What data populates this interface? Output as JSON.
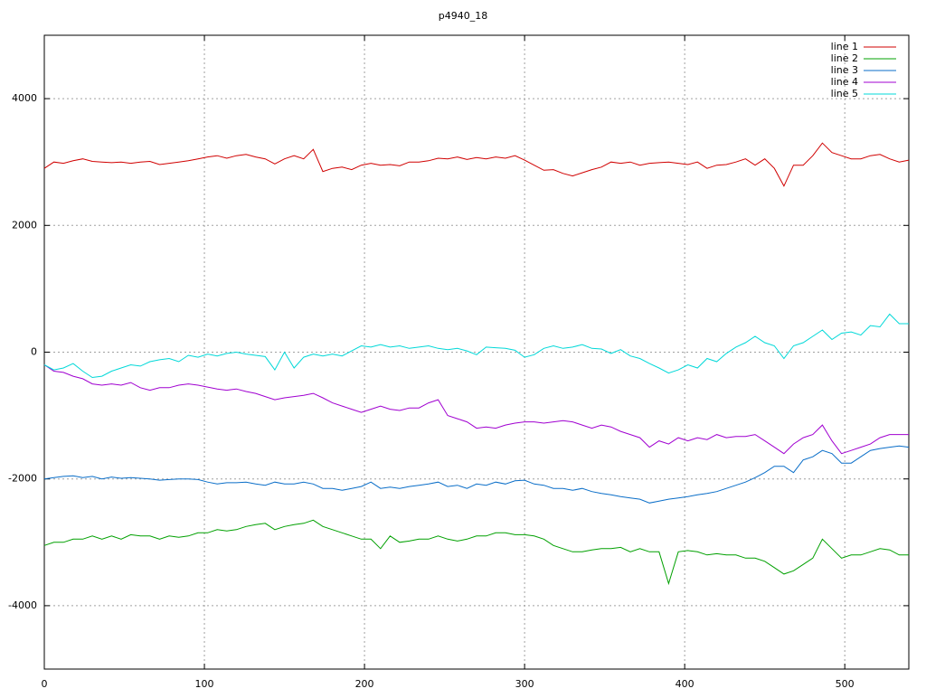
{
  "chart_data": {
    "type": "line",
    "title": "p4940_18",
    "x": [
      0,
      6,
      12,
      18,
      24,
      30,
      36,
      42,
      48,
      54,
      60,
      66,
      72,
      78,
      84,
      90,
      96,
      102,
      108,
      114,
      120,
      126,
      132,
      138,
      144,
      150,
      156,
      162,
      168,
      174,
      180,
      186,
      192,
      198,
      204,
      210,
      216,
      222,
      228,
      234,
      240,
      246,
      252,
      258,
      264,
      270,
      276,
      282,
      288,
      294,
      300,
      306,
      312,
      318,
      324,
      330,
      336,
      342,
      348,
      354,
      360,
      366,
      372,
      378,
      384,
      390,
      396,
      402,
      408,
      414,
      420,
      426,
      432,
      438,
      444,
      450,
      456,
      462,
      468,
      474,
      480,
      486,
      492,
      498,
      504,
      510,
      516,
      522,
      528,
      534,
      540
    ],
    "series": [
      {
        "name": "line 1",
        "color": "#d00000",
        "values": [
          2900,
          3000,
          2980,
          3020,
          3050,
          3010,
          3000,
          2990,
          3000,
          2980,
          3000,
          3010,
          2960,
          2980,
          3000,
          3020,
          3050,
          3080,
          3100,
          3060,
          3100,
          3120,
          3080,
          3050,
          2970,
          3050,
          3100,
          3050,
          3200,
          2850,
          2900,
          2920,
          2880,
          2950,
          2980,
          2950,
          2960,
          2940,
          3000,
          3000,
          3020,
          3060,
          3050,
          3080,
          3040,
          3070,
          3050,
          3080,
          3060,
          3100,
          3030,
          2950,
          2870,
          2880,
          2820,
          2780,
          2830,
          2880,
          2920,
          3000,
          2980,
          3000,
          2950,
          2980,
          2990,
          3000,
          2980,
          2960,
          3000,
          2900,
          2950,
          2960,
          3000,
          3050,
          2950,
          3050,
          2900,
          2620,
          2950,
          2950,
          3100,
          3300,
          3150,
          3100,
          3050,
          3050,
          3100,
          3120,
          3050,
          3000,
          3030
        ]
      },
      {
        "name": "line 2",
        "color": "#00a000",
        "values": [
          -3050,
          -3000,
          -3000,
          -2950,
          -2950,
          -2900,
          -2950,
          -2900,
          -2950,
          -2880,
          -2900,
          -2900,
          -2950,
          -2900,
          -2920,
          -2900,
          -2850,
          -2850,
          -2800,
          -2820,
          -2800,
          -2750,
          -2720,
          -2700,
          -2800,
          -2750,
          -2720,
          -2700,
          -2650,
          -2750,
          -2800,
          -2850,
          -2900,
          -2950,
          -2950,
          -3100,
          -2900,
          -3000,
          -2980,
          -2950,
          -2950,
          -2900,
          -2950,
          -2980,
          -2950,
          -2900,
          -2900,
          -2850,
          -2850,
          -2880,
          -2880,
          -2900,
          -2950,
          -3050,
          -3100,
          -3150,
          -3150,
          -3120,
          -3100,
          -3100,
          -3080,
          -3150,
          -3100,
          -3150,
          -3150,
          -3650,
          -3150,
          -3130,
          -3150,
          -3200,
          -3180,
          -3200,
          -3200,
          -3250,
          -3250,
          -3300,
          -3400,
          -3500,
          -3450,
          -3350,
          -3250,
          -2950,
          -3100,
          -3250,
          -3200,
          -3200,
          -3150,
          -3100,
          -3120,
          -3200,
          -3200
        ]
      },
      {
        "name": "line 3",
        "color": "#0a6ec8",
        "values": [
          -2000,
          -1980,
          -1960,
          -1950,
          -1980,
          -1960,
          -2000,
          -1970,
          -1990,
          -1980,
          -1990,
          -2000,
          -2020,
          -2010,
          -2000,
          -2000,
          -2010,
          -2050,
          -2080,
          -2060,
          -2060,
          -2050,
          -2080,
          -2100,
          -2050,
          -2080,
          -2080,
          -2050,
          -2080,
          -2150,
          -2150,
          -2180,
          -2150,
          -2120,
          -2050,
          -2150,
          -2130,
          -2150,
          -2120,
          -2100,
          -2080,
          -2050,
          -2120,
          -2100,
          -2150,
          -2080,
          -2100,
          -2050,
          -2080,
          -2030,
          -2020,
          -2080,
          -2100,
          -2150,
          -2150,
          -2180,
          -2150,
          -2200,
          -2230,
          -2250,
          -2280,
          -2300,
          -2320,
          -2380,
          -2350,
          -2320,
          -2300,
          -2280,
          -2250,
          -2230,
          -2200,
          -2150,
          -2100,
          -2050,
          -1980,
          -1900,
          -1800,
          -1800,
          -1900,
          -1700,
          -1650,
          -1550,
          -1600,
          -1750,
          -1750,
          -1650,
          -1550,
          -1520,
          -1500,
          -1480,
          -1500
        ]
      },
      {
        "name": "line 4",
        "color": "#a000d0",
        "values": [
          -200,
          -300,
          -320,
          -380,
          -420,
          -500,
          -520,
          -500,
          -520,
          -480,
          -560,
          -600,
          -560,
          -560,
          -520,
          -500,
          -520,
          -550,
          -580,
          -600,
          -580,
          -620,
          -650,
          -700,
          -750,
          -720,
          -700,
          -680,
          -650,
          -720,
          -800,
          -850,
          -900,
          -950,
          -900,
          -850,
          -900,
          -920,
          -880,
          -880,
          -800,
          -750,
          -1000,
          -1050,
          -1100,
          -1200,
          -1180,
          -1200,
          -1150,
          -1120,
          -1100,
          -1100,
          -1120,
          -1100,
          -1080,
          -1100,
          -1150,
          -1200,
          -1150,
          -1180,
          -1250,
          -1300,
          -1350,
          -1500,
          -1400,
          -1450,
          -1350,
          -1400,
          -1350,
          -1380,
          -1300,
          -1350,
          -1330,
          -1330,
          -1300,
          -1400,
          -1500,
          -1600,
          -1450,
          -1350,
          -1300,
          -1150,
          -1400,
          -1600,
          -1550,
          -1500,
          -1450,
          -1350,
          -1300,
          -1300,
          -1300
        ]
      },
      {
        "name": "line 5",
        "color": "#00d8d8",
        "values": [
          -200,
          -280,
          -250,
          -180,
          -300,
          -400,
          -380,
          -300,
          -250,
          -200,
          -220,
          -150,
          -120,
          -100,
          -150,
          -50,
          -80,
          -30,
          -60,
          -20,
          0,
          -30,
          -50,
          -70,
          -280,
          0,
          -250,
          -80,
          -30,
          -60,
          -30,
          -60,
          20,
          100,
          80,
          120,
          80,
          100,
          60,
          80,
          100,
          60,
          40,
          60,
          20,
          -40,
          80,
          70,
          60,
          30,
          -80,
          -40,
          60,
          100,
          60,
          80,
          120,
          60,
          50,
          -20,
          40,
          -60,
          -100,
          -180,
          -250,
          -330,
          -280,
          -200,
          -250,
          -100,
          -150,
          -20,
          80,
          150,
          250,
          150,
          100,
          -100,
          100,
          150,
          250,
          350,
          200,
          300,
          320,
          270,
          420,
          400,
          600,
          450,
          450
        ]
      }
    ],
    "xlim": [
      0,
      540
    ],
    "xticks": [
      0,
      100,
      200,
      300,
      400,
      500
    ],
    "ylim": [
      -5000,
      5000
    ],
    "yticks": [
      -4000,
      -2000,
      0,
      2000,
      4000
    ],
    "grid": true,
    "legend": "top-right"
  }
}
